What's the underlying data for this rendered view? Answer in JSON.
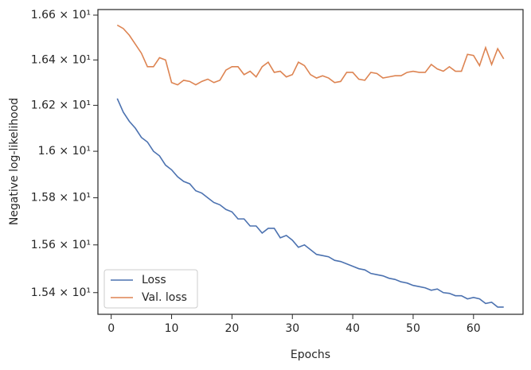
{
  "chart_data": {
    "type": "line",
    "x_label": "Epochs",
    "y_label": "Negative log-likelihood",
    "x": [
      1,
      2,
      3,
      4,
      5,
      6,
      7,
      8,
      9,
      10,
      11,
      12,
      13,
      14,
      15,
      16,
      17,
      18,
      19,
      20,
      21,
      22,
      23,
      24,
      25,
      26,
      27,
      28,
      29,
      30,
      31,
      32,
      33,
      34,
      35,
      36,
      37,
      38,
      39,
      40,
      41,
      42,
      43,
      44,
      45,
      46,
      47,
      48,
      49,
      50,
      51,
      52,
      53,
      54,
      55,
      56,
      57,
      58,
      59,
      60,
      61,
      62,
      63,
      64,
      65
    ],
    "series": [
      {
        "name": "Loss",
        "color": "#4c72b0",
        "values": [
          16.23,
          16.17,
          16.13,
          16.1,
          16.06,
          16.04,
          16.0,
          15.98,
          15.94,
          15.92,
          15.89,
          15.87,
          15.86,
          15.83,
          15.82,
          15.8,
          15.78,
          15.77,
          15.75,
          15.74,
          15.71,
          15.71,
          15.68,
          15.68,
          15.65,
          15.67,
          15.67,
          15.63,
          15.64,
          15.62,
          15.59,
          15.6,
          15.58,
          15.56,
          15.555,
          15.55,
          15.535,
          15.53,
          15.52,
          15.51,
          15.5,
          15.495,
          15.48,
          15.475,
          15.47,
          15.46,
          15.455,
          15.445,
          15.44,
          15.43,
          15.425,
          15.42,
          15.41,
          15.415,
          15.4,
          15.397,
          15.387,
          15.387,
          15.374,
          15.38,
          15.374,
          15.355,
          15.36,
          15.34,
          15.34
        ]
      },
      {
        "name": "Val. loss",
        "color": "#dd8452",
        "values": [
          16.555,
          16.54,
          16.51,
          16.47,
          16.43,
          16.37,
          16.37,
          16.41,
          16.4,
          16.3,
          16.29,
          16.31,
          16.305,
          16.29,
          16.305,
          16.315,
          16.3,
          16.31,
          16.355,
          16.37,
          16.37,
          16.335,
          16.35,
          16.325,
          16.37,
          16.39,
          16.345,
          16.35,
          16.325,
          16.335,
          16.39,
          16.375,
          16.335,
          16.32,
          16.33,
          16.32,
          16.3,
          16.305,
          16.345,
          16.345,
          16.315,
          16.31,
          16.345,
          16.34,
          16.32,
          16.325,
          16.33,
          16.33,
          16.345,
          16.35,
          16.345,
          16.345,
          16.38,
          16.36,
          16.35,
          16.37,
          16.35,
          16.35,
          16.425,
          16.42,
          16.375,
          16.455,
          16.38,
          16.45,
          16.405
        ]
      }
    ],
    "xlim": [
      -2.2,
      68.2
    ],
    "xticks": [
      0,
      10,
      20,
      30,
      40,
      50,
      60
    ],
    "ylim": [
      15.31,
      16.625
    ],
    "y_log": true,
    "yticks": [
      {
        "value": 15.4,
        "label": "1.54 × 10¹"
      },
      {
        "value": 15.6,
        "label": "1.56 × 10¹"
      },
      {
        "value": 15.8,
        "label": "1.58 × 10¹"
      },
      {
        "value": 16.0,
        "label": "1.6 × 10¹"
      },
      {
        "value": 16.2,
        "label": "1.62 × 10¹"
      },
      {
        "value": 16.4,
        "label": "1.64 × 10¹"
      },
      {
        "value": 16.6,
        "label": "1.66 × 10¹"
      }
    ],
    "grid": false,
    "legend": "lower left"
  }
}
